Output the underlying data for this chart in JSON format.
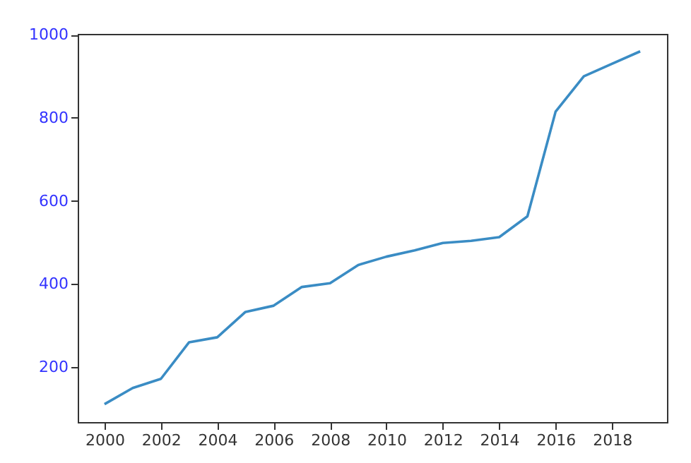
{
  "chart_data": {
    "type": "line",
    "x": [
      2000,
      2001,
      2002,
      2003,
      2004,
      2005,
      2006,
      2007,
      2008,
      2009,
      2010,
      2011,
      2012,
      2013,
      2014,
      2015,
      2016,
      2017,
      2018,
      2019
    ],
    "series": [
      {
        "color": "#3a8cc4",
        "values": [
          111,
          150,
          172,
          260,
          272,
          333,
          348,
          393,
          402,
          446,
          466,
          481,
          499,
          504,
          513,
          563,
          815,
          900,
          930,
          960
        ]
      }
    ],
    "xlim": [
      1999.05,
      2019.95
    ],
    "xticks": [
      2000,
      2002,
      2004,
      2006,
      2008,
      2010,
      2012,
      2014,
      2016,
      2018
    ],
    "ylim": [
      68,
      1002
    ],
    "yticks": [
      200,
      400,
      600,
      800,
      1000
    ],
    "grid": false,
    "marker": "none",
    "line_style": "solid"
  }
}
